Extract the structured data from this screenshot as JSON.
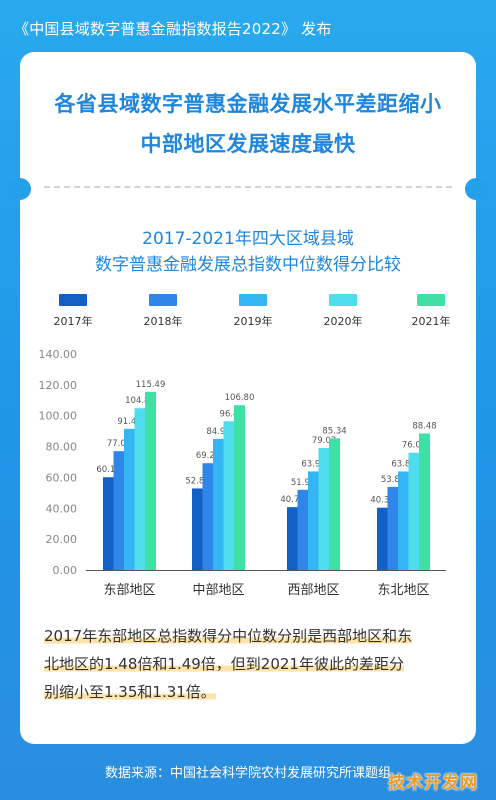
{
  "header": {
    "title": "《中国县域数字普惠金融指数报告2022》 发布"
  },
  "headline": {
    "line1": "各省县域数字普惠金融发展水平差距缩小",
    "line2": "中部地区发展速度最快"
  },
  "chart_title": {
    "line1": "2017-2021年四大区域县域",
    "line2": "数字普惠金融发展总指数中位数得分比较"
  },
  "colors": {
    "2017": "#1360c4",
    "2018": "#2f86e8",
    "2019": "#33b6f3",
    "2020": "#4fdced",
    "2021": "#3ee0a4"
  },
  "chart_data": {
    "type": "bar",
    "categories": [
      "东部地区",
      "中部地区",
      "西部地区",
      "东北地区"
    ],
    "series": [
      {
        "name": "2017年",
        "values": [
          60.14,
          52.87,
          40.75,
          40.39
        ]
      },
      {
        "name": "2018年",
        "values": [
          77.0,
          69.22,
          51.98,
          53.83
        ]
      },
      {
        "name": "2019年",
        "values": [
          91.49,
          84.98,
          63.9,
          63.87
        ]
      },
      {
        "name": "2020年",
        "values": [
          104.84,
          96.4,
          79.07,
          76.01
        ]
      },
      {
        "name": "2021年",
        "values": [
          115.49,
          106.8,
          85.34,
          88.48
        ]
      }
    ],
    "value_labels": [
      [
        "60.14",
        "77.00",
        "91.49",
        "104.84",
        "115.49"
      ],
      [
        "52.87",
        "69.22",
        "84.98",
        "96.4",
        "106.80"
      ],
      [
        "40.75",
        "51.98",
        "63.90",
        "79.07",
        "85.34"
      ],
      [
        "40.39",
        "53.83",
        "63.87",
        "76.01",
        "88.48"
      ]
    ],
    "ylim": [
      0,
      140
    ],
    "yticks": [
      "0.00",
      "20.00",
      "40.00",
      "60.00",
      "80.00",
      "100.00",
      "120.00",
      "140.00"
    ],
    "legend_position": "top",
    "grid": false
  },
  "footnote": {
    "line1": "2017年东部地区总指数得分中位数分别是西部地区和东",
    "line2": "北地区的1.48倍和1.49倍，但到2021年彼此的差距分",
    "line3": "别缩小至1.35和1.31倍。"
  },
  "source": "数据来源：中国社会科学院农村发展研究所课题组",
  "watermark": "技术开发网"
}
